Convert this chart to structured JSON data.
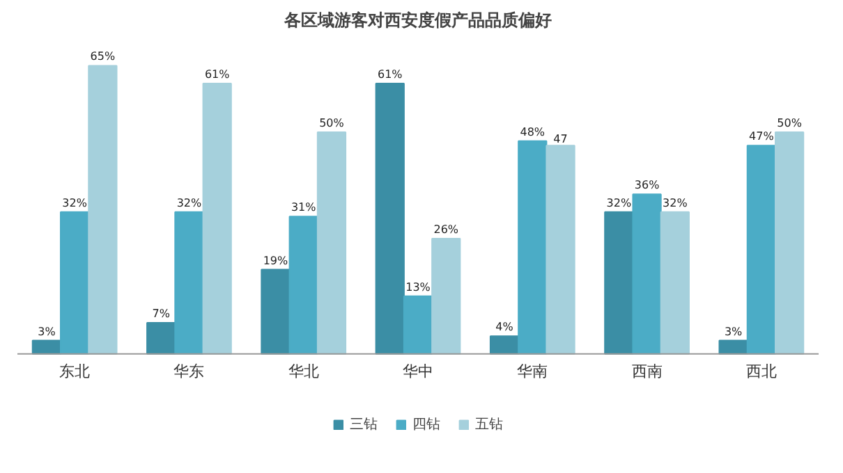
{
  "chart_data": {
    "type": "bar",
    "title": "各区域游客对西安度假产品品质偏好",
    "categories": [
      "东北",
      "华东",
      "华北",
      "华中",
      "华南",
      "西南",
      "西北"
    ],
    "series": [
      {
        "name": "三钻",
        "color": "#3b8ea5",
        "values": [
          3,
          7,
          19,
          61,
          4,
          32,
          3
        ],
        "value_labels": [
          "3%",
          "7%",
          "19%",
          "61%",
          "4%",
          "32%",
          "3%"
        ]
      },
      {
        "name": "四钻",
        "color": "#4bacc6",
        "values": [
          32,
          32,
          31,
          13,
          48,
          36,
          47
        ],
        "value_labels": [
          "32%",
          "32%",
          "31%",
          "13%",
          "48%",
          "36%",
          "47%"
        ]
      },
      {
        "name": "五钻",
        "color": "#a5d0dc",
        "values": [
          65,
          61,
          50,
          26,
          47,
          32,
          50
        ],
        "value_labels": [
          "65%",
          "61%",
          "50%",
          "26%",
          "47",
          "32%",
          "50%"
        ]
      }
    ],
    "legend": "bottom",
    "grid": false
  }
}
